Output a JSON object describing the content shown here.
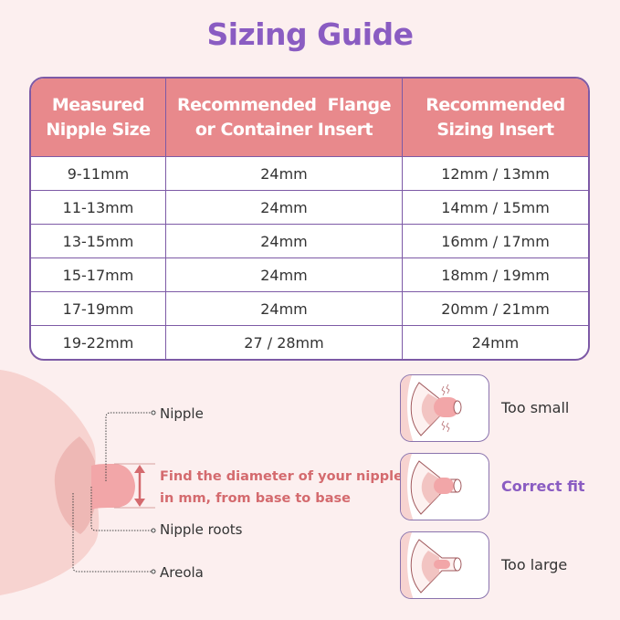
{
  "title": "Sizing Guide",
  "table": {
    "headers": [
      [
        "Measured",
        "Nipple Size"
      ],
      [
        "Recommended  Flange",
        "or Container Insert"
      ],
      [
        "Recommended",
        "Sizing Insert"
      ]
    ],
    "rows": [
      [
        "9-11mm",
        "24mm",
        "12mm / 13mm"
      ],
      [
        "11-13mm",
        "24mm",
        "14mm / 15mm"
      ],
      [
        "13-15mm",
        "24mm",
        "16mm / 17mm"
      ],
      [
        "15-17mm",
        "24mm",
        "18mm / 19mm"
      ],
      [
        "17-19mm",
        "24mm",
        "20mm / 21mm"
      ],
      [
        "19-22mm",
        "27 / 28mm",
        "24mm"
      ]
    ]
  },
  "diagram": {
    "labels": {
      "nipple": "Nipple",
      "nipple_roots": "Nipple roots",
      "areola": "Areola"
    },
    "instruction": [
      "Find the diameter of your nipple",
      "in mm, from base to base"
    ]
  },
  "fit": [
    {
      "label": "Too small",
      "icon": "flange-too-small-icon"
    },
    {
      "label": "Correct fit",
      "icon": "flange-correct-fit-icon"
    },
    {
      "label": "Too large",
      "icon": "flange-too-large-icon"
    }
  ],
  "colors": {
    "title": "#8a5cc2",
    "header": "#e8898c",
    "border": "#7d5aa6",
    "instruction": "#d46a6e",
    "background": "#fcefef"
  }
}
